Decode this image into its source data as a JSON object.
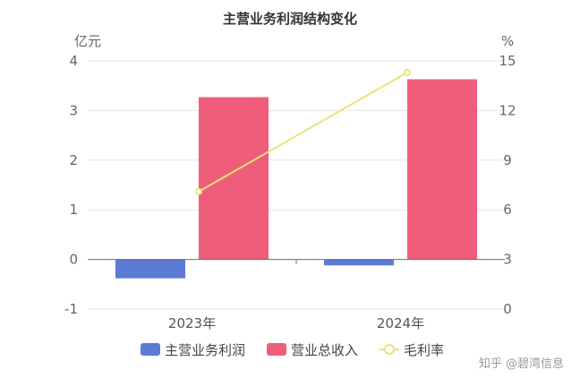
{
  "colors": {
    "profit": "#5b7bd5",
    "revenue": "#ef5d7a",
    "margin": "#ede27a"
  },
  "chart_data": {
    "type": "bar",
    "title": "主营业务利润结构变化",
    "categories": [
      "2023年",
      "2024年"
    ],
    "left_axis": {
      "unit": "亿元",
      "ylim": [
        -1,
        4
      ],
      "ticks": [
        "4",
        "3",
        "2",
        "1",
        "0",
        "-1"
      ]
    },
    "right_axis": {
      "unit": "%",
      "ylim": [
        0,
        15
      ],
      "ticks": [
        "15",
        "12",
        "9",
        "6",
        "3",
        "0"
      ]
    },
    "series": [
      {
        "name": "主营业务利润",
        "type": "bar",
        "axis": "left",
        "values": [
          -0.38,
          -0.12
        ]
      },
      {
        "name": "营业总收入",
        "type": "bar",
        "axis": "left",
        "values": [
          3.27,
          3.63
        ]
      },
      {
        "name": "毛利率",
        "type": "line",
        "axis": "right",
        "values": [
          7.1,
          14.3
        ]
      }
    ],
    "legend_position": "bottom",
    "grid": true
  },
  "watermark": {
    "text": "知乎 @碧湾信息"
  }
}
